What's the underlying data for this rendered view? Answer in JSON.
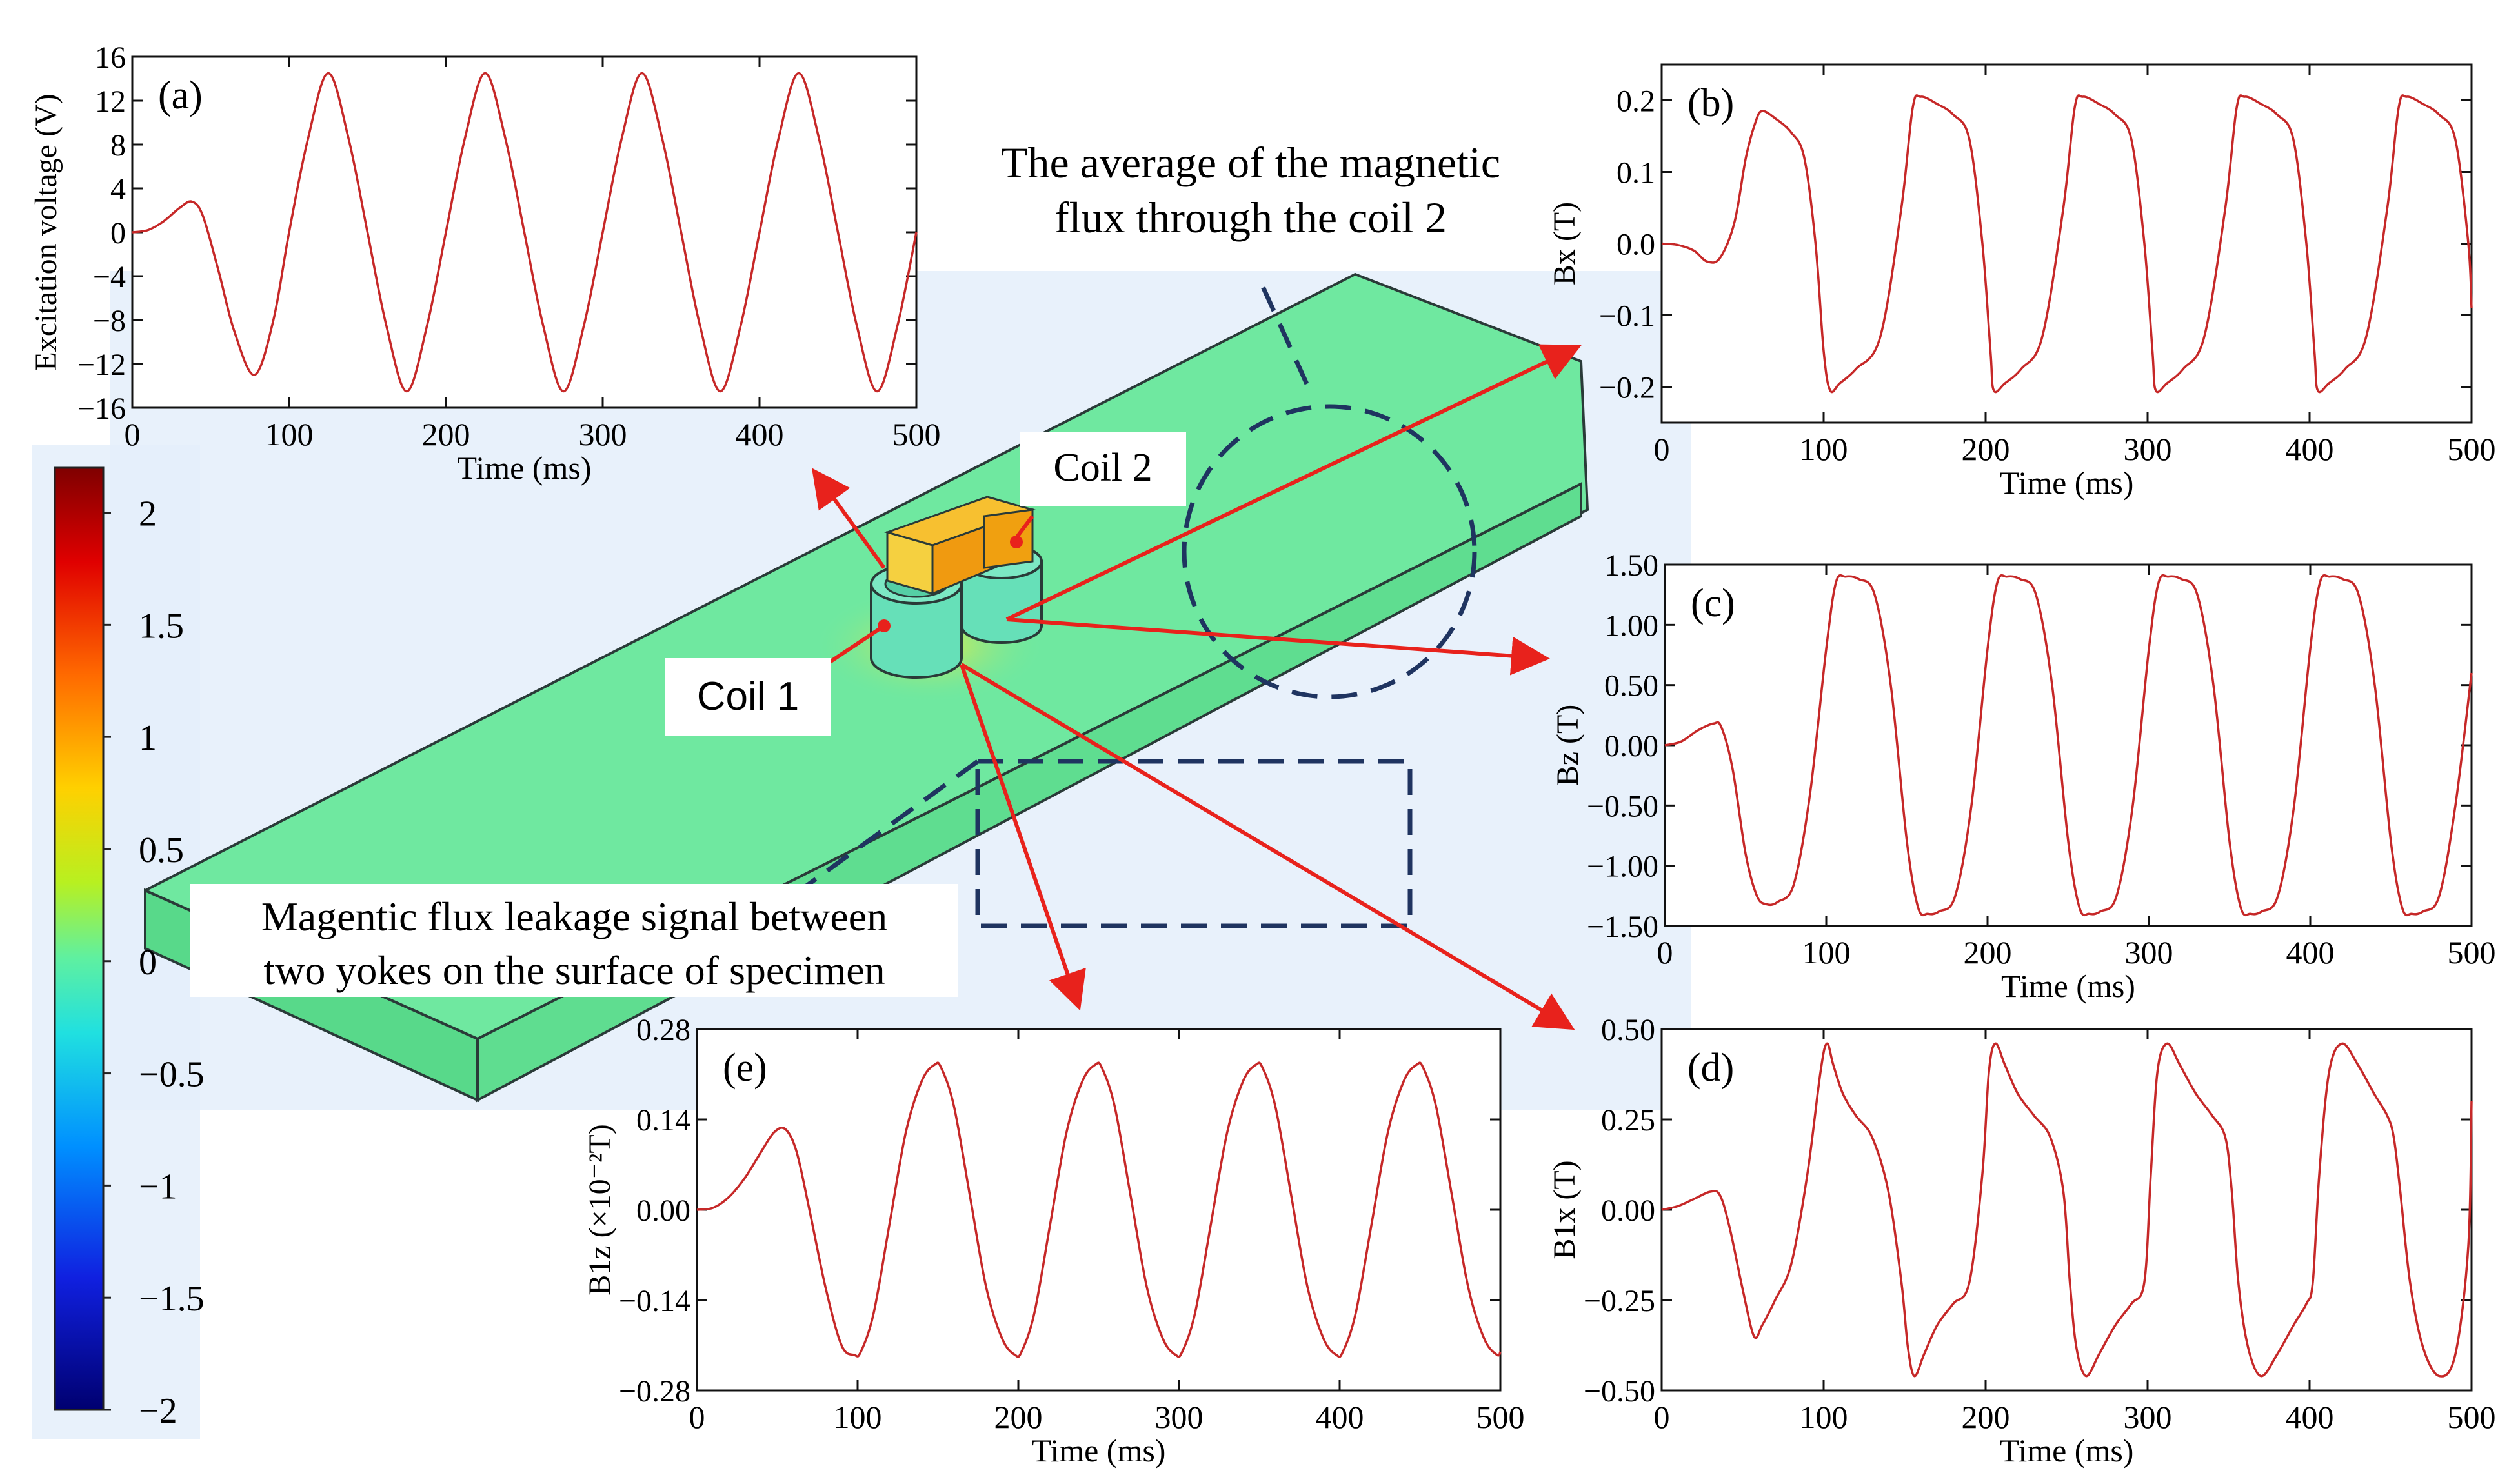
{
  "colors": {
    "curve": "#c62828",
    "specimen": "#6fe8a0",
    "specimen_side": "#58d98a",
    "specimen_edge": "#2a3a38",
    "glow": "#dde9f8",
    "arrow": "#e8221c",
    "dashed": "#1f3460",
    "yoke": "#f0a010",
    "coil": "#66e0b8"
  },
  "scene": {
    "coil1_label": "Coil 1",
    "coil2_label": "Coil 2",
    "average_flux_label_line1": "The average of the magnetic",
    "average_flux_label_line2": "flux through the coil 2",
    "leakage_label_line1": "Magentic flux leakage signal  between",
    "leakage_label_line2": "two yokes on the surface of specimen"
  },
  "colorbar": {
    "ticks": [
      "2",
      "1.5",
      "1",
      "0.5",
      "0",
      "−0.5",
      "−1",
      "−1.5",
      "−2"
    ],
    "range": [
      -2,
      2.2
    ]
  },
  "chart_data": [
    {
      "type": "line",
      "panel_label": "(a)",
      "xlabel": "Time (ms)",
      "ylabel": "Excitation voltage (V)",
      "xlim": [
        0,
        500
      ],
      "ylim": [
        -16,
        16
      ],
      "xticks": [
        "0",
        "100",
        "200",
        "300",
        "400",
        "500"
      ],
      "yticks": [
        "16",
        "12",
        "8",
        "4",
        "0",
        "−4",
        "−8",
        "−12",
        "−16"
      ],
      "x": [
        0,
        10,
        20,
        30,
        38,
        45,
        55,
        65,
        78,
        90,
        100,
        112,
        125,
        138,
        150,
        162,
        175,
        188,
        200,
        212,
        225,
        238,
        250,
        262,
        275,
        288,
        300,
        312,
        325,
        338,
        350,
        362,
        375,
        388,
        400,
        412,
        425,
        438,
        450,
        462,
        475,
        488,
        500
      ],
      "y": [
        0,
        0.2,
        1.0,
        2.2,
        2.8,
        1.5,
        -3.5,
        -9.0,
        -13.0,
        -8.0,
        0,
        8.5,
        14.5,
        8.5,
        0,
        -8.5,
        -14.5,
        -8.5,
        0,
        8.5,
        14.5,
        8.5,
        0,
        -8.5,
        -14.5,
        -8.5,
        0,
        8.5,
        14.5,
        8.5,
        0,
        -8.5,
        -14.5,
        -8.5,
        0,
        8.5,
        14.5,
        8.5,
        0,
        -8.5,
        -14.5,
        -8.5,
        0
      ]
    },
    {
      "type": "line",
      "panel_label": "(b)",
      "xlabel": "Time (ms)",
      "ylabel": "Bx (T)",
      "xlim": [
        0,
        500
      ],
      "ylim": [
        -0.25,
        0.25
      ],
      "xticks": [
        "0",
        "100",
        "200",
        "300",
        "400",
        "500"
      ],
      "yticks": [
        "0.2",
        "0.1",
        "0.0",
        "−0.1",
        "−0.2"
      ],
      "x": [
        0,
        10,
        20,
        28,
        36,
        45,
        52,
        58,
        62,
        70,
        80,
        88,
        95,
        100,
        104,
        110,
        120,
        135,
        148,
        155,
        160,
        170,
        180,
        190,
        198,
        203,
        205,
        212,
        222,
        235,
        248,
        255,
        260,
        270,
        280,
        290,
        298,
        303,
        305,
        312,
        322,
        335,
        348,
        355,
        360,
        370,
        380,
        390,
        398,
        403,
        405,
        412,
        422,
        435,
        448,
        455,
        460,
        470,
        480,
        490,
        498,
        500
      ],
      "y": [
        0.0,
        -0.002,
        -0.01,
        -0.025,
        -0.02,
        0.03,
        0.12,
        0.17,
        0.185,
        0.175,
        0.155,
        0.12,
        0.0,
        -0.15,
        -0.205,
        -0.195,
        -0.175,
        -0.13,
        0.05,
        0.19,
        0.205,
        0.195,
        0.18,
        0.145,
        0.0,
        -0.15,
        -0.205,
        -0.195,
        -0.175,
        -0.13,
        0.05,
        0.19,
        0.205,
        0.195,
        0.18,
        0.145,
        0.0,
        -0.15,
        -0.205,
        -0.195,
        -0.175,
        -0.13,
        0.05,
        0.19,
        0.205,
        0.195,
        0.18,
        0.145,
        0.0,
        -0.15,
        -0.205,
        -0.195,
        -0.175,
        -0.13,
        0.05,
        0.19,
        0.205,
        0.195,
        0.18,
        0.145,
        0.0,
        -0.09
      ]
    },
    {
      "type": "line",
      "panel_label": "(c)",
      "xlabel": "Time (ms)",
      "ylabel": "Bz (T)",
      "xlim": [
        0,
        500
      ],
      "ylim": [
        -1.5,
        1.5
      ],
      "xticks": [
        "0",
        "100",
        "200",
        "300",
        "400",
        "500"
      ],
      "yticks": [
        "1.50",
        "1.00",
        "0.50",
        "0.00",
        "−0.50",
        "−1.00",
        "−1.50"
      ],
      "x": [
        0,
        10,
        20,
        30,
        35,
        42,
        50,
        57,
        63,
        70,
        80,
        90,
        100,
        106,
        112,
        120,
        130,
        140,
        150,
        157,
        163,
        170,
        180,
        190,
        200,
        206,
        212,
        220,
        230,
        240,
        250,
        257,
        263,
        270,
        280,
        290,
        300,
        306,
        312,
        320,
        330,
        340,
        350,
        357,
        363,
        370,
        380,
        390,
        400,
        406,
        412,
        420,
        430,
        440,
        450,
        457,
        463,
        470,
        480,
        490,
        500
      ],
      "y": [
        0,
        0.03,
        0.12,
        0.18,
        0.15,
        -0.2,
        -0.9,
        -1.25,
        -1.32,
        -1.3,
        -1.15,
        -0.4,
        0.8,
        1.35,
        1.4,
        1.38,
        1.25,
        0.5,
        -0.8,
        -1.35,
        -1.4,
        -1.38,
        -1.25,
        -0.5,
        0.8,
        1.35,
        1.4,
        1.38,
        1.25,
        0.5,
        -0.8,
        -1.35,
        -1.4,
        -1.38,
        -1.25,
        -0.5,
        0.8,
        1.35,
        1.4,
        1.38,
        1.25,
        0.5,
        -0.8,
        -1.35,
        -1.4,
        -1.38,
        -1.25,
        -0.5,
        0.8,
        1.35,
        1.4,
        1.38,
        1.25,
        0.5,
        -0.8,
        -1.35,
        -1.4,
        -1.38,
        -1.25,
        -0.5,
        0.6
      ]
    },
    {
      "type": "line",
      "panel_label": "(d)",
      "xlabel": "Time (ms)",
      "ylabel": "B1x (T)",
      "xlim": [
        0,
        500
      ],
      "ylim": [
        -0.5,
        0.5
      ],
      "xticks": [
        "0",
        "100",
        "200",
        "300",
        "400",
        "500"
      ],
      "yticks": [
        "0.50",
        "0.25",
        "0.00",
        "−0.25",
        "−0.50"
      ],
      "x": [
        0,
        10,
        20,
        30,
        36,
        42,
        50,
        57,
        62,
        70,
        80,
        90,
        98,
        102,
        106,
        112,
        120,
        130,
        140,
        148,
        152,
        156,
        162,
        170,
        180,
        190,
        198,
        202,
        206,
        212,
        220,
        230,
        240,
        248,
        252,
        256,
        262,
        270,
        280,
        290,
        298,
        302,
        306,
        312,
        320,
        330,
        340,
        348,
        352,
        356,
        362,
        370,
        380,
        390,
        398,
        402,
        406,
        412,
        420,
        430,
        440,
        448,
        452,
        456,
        462,
        470,
        480,
        490,
        498,
        500
      ],
      "y": [
        0,
        0.01,
        0.03,
        0.05,
        0.04,
        -0.05,
        -0.22,
        -0.35,
        -0.32,
        -0.25,
        -0.15,
        0.1,
        0.38,
        0.46,
        0.4,
        0.32,
        0.26,
        0.2,
        0.05,
        -0.2,
        -0.38,
        -0.46,
        -0.4,
        -0.32,
        -0.26,
        -0.2,
        0.1,
        0.38,
        0.46,
        0.4,
        0.32,
        0.26,
        0.2,
        0.05,
        -0.2,
        -0.38,
        -0.46,
        -0.4,
        -0.32,
        -0.26,
        -0.2,
        0.1,
        0.38,
        0.46,
        0.4,
        0.32,
        0.26,
        0.2,
        0.05,
        -0.2,
        -0.38,
        -0.46,
        -0.4,
        -0.32,
        -0.26,
        -0.2,
        0.1,
        0.38,
        0.46,
        0.4,
        0.32,
        0.26,
        0.2,
        0.05,
        -0.2,
        -0.38,
        -0.46,
        -0.4,
        -0.1,
        0.3
      ]
    },
    {
      "type": "line",
      "panel_label": "(e)",
      "xlabel": "Time (ms)",
      "ylabel": "B1z (×10⁻²T)",
      "xlim": [
        0,
        500
      ],
      "ylim": [
        -0.28,
        0.28
      ],
      "xticks": [
        "0",
        "100",
        "200",
        "300",
        "400",
        "500"
      ],
      "yticks": [
        "0.28",
        "0.14",
        "0.00",
        "−0.14",
        "−0.28"
      ],
      "x": [
        0,
        10,
        20,
        30,
        40,
        48,
        55,
        62,
        70,
        80,
        90,
        98,
        102,
        110,
        120,
        130,
        140,
        148,
        152,
        160,
        170,
        180,
        190,
        198,
        202,
        210,
        220,
        230,
        240,
        248,
        252,
        260,
        270,
        280,
        290,
        298,
        302,
        310,
        320,
        330,
        340,
        348,
        352,
        360,
        370,
        380,
        390,
        398,
        402,
        410,
        420,
        430,
        440,
        448,
        452,
        460,
        470,
        480,
        490,
        498,
        500
      ],
      "y": [
        0,
        0.003,
        0.02,
        0.05,
        0.09,
        0.12,
        0.125,
        0.09,
        0.0,
        -0.12,
        -0.21,
        -0.225,
        -0.22,
        -0.16,
        -0.02,
        0.12,
        0.2,
        0.225,
        0.22,
        0.16,
        0.02,
        -0.12,
        -0.2,
        -0.225,
        -0.22,
        -0.16,
        -0.02,
        0.12,
        0.2,
        0.225,
        0.22,
        0.16,
        0.02,
        -0.12,
        -0.2,
        -0.225,
        -0.22,
        -0.16,
        -0.02,
        0.12,
        0.2,
        0.225,
        0.22,
        0.16,
        0.02,
        -0.12,
        -0.2,
        -0.225,
        -0.22,
        -0.16,
        -0.02,
        0.12,
        0.2,
        0.225,
        0.22,
        0.16,
        0.02,
        -0.12,
        -0.2,
        -0.225,
        -0.22
      ]
    }
  ]
}
